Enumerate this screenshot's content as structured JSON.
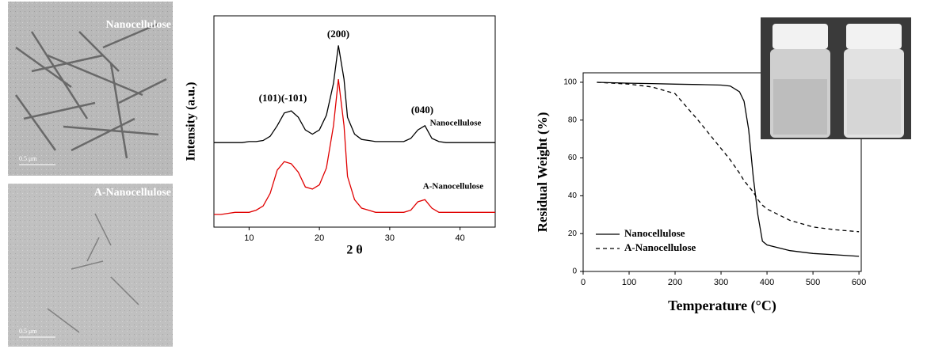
{
  "images": [
    {
      "label": "Nanocellulose",
      "scale": "0.5 μm"
    },
    {
      "label": "A-Nanocellulose",
      "scale": "0.5 μm"
    }
  ],
  "chart_data": [
    {
      "type": "line",
      "xlabel": "2 θ",
      "ylabel": "Intensity (a.u.)",
      "annotations": [
        "(101)(-101)",
        "(200)",
        "(040)"
      ],
      "x": [
        5,
        6,
        7,
        8,
        9,
        10,
        11,
        12,
        13,
        14,
        15,
        16,
        17,
        18,
        19,
        20,
        21,
        22,
        22.7,
        23.5,
        24,
        25,
        26,
        27,
        28,
        29,
        30,
        31,
        32,
        33,
        34,
        35,
        36,
        37,
        38,
        39,
        40,
        41,
        42,
        43,
        44,
        45
      ],
      "series": [
        {
          "name": "Nanocellulose",
          "color": "#000000",
          "values": [
            40,
            40,
            40,
            40,
            40,
            40.5,
            40.5,
            41,
            43,
            48,
            54,
            55,
            52,
            46,
            44,
            46,
            53,
            68,
            86,
            70,
            52,
            44,
            41.5,
            41,
            40.5,
            40.5,
            40.5,
            40.5,
            40.5,
            42,
            46,
            48,
            42,
            40.5,
            40,
            40,
            40,
            40,
            40,
            40,
            40,
            40
          ]
        },
        {
          "name": "A-Nanocellulose",
          "color": "#e00000",
          "values": [
            6,
            6,
            6.5,
            7,
            7,
            7,
            8,
            10,
            16,
            27,
            31,
            30,
            26,
            19,
            18,
            20,
            28,
            48,
            70,
            48,
            24,
            13,
            9,
            8,
            7,
            7,
            7,
            7,
            7,
            8,
            12,
            13,
            9,
            7,
            7,
            7,
            7,
            7,
            7,
            7,
            7,
            7
          ]
        }
      ],
      "xlim": [
        5,
        45
      ],
      "xticks": [
        10,
        20,
        30,
        40
      ],
      "ylim": [
        0,
        100
      ]
    },
    {
      "type": "line",
      "xlabel": "Temperature (°C)",
      "ylabel": "Residual Weight (%)",
      "legend": "lower-left",
      "x": [
        30,
        100,
        150,
        200,
        250,
        300,
        320,
        340,
        350,
        360,
        370,
        380,
        390,
        400,
        450,
        500,
        550,
        600
      ],
      "series": [
        {
          "name": "Nanocellulose",
          "color": "#000000",
          "style": "solid",
          "values": [
            100,
            99.5,
            99.3,
            99,
            98.8,
            98.5,
            98,
            95,
            90,
            75,
            50,
            30,
            16,
            14,
            11,
            9.5,
            8.8,
            8
          ]
        },
        {
          "name": "A-Nanocellulose",
          "color": "#000000",
          "style": "dashed",
          "values": [
            100,
            99,
            97.5,
            94,
            80,
            65,
            59,
            52,
            48,
            45,
            42,
            38,
            35,
            33,
            27,
            23.5,
            22,
            21
          ]
        }
      ],
      "xlim": [
        0,
        605
      ],
      "xticks": [
        0,
        100,
        200,
        300,
        400,
        500,
        600
      ],
      "ylim": [
        0,
        105
      ],
      "yticks": [
        0,
        20,
        40,
        60,
        80,
        100
      ]
    }
  ]
}
